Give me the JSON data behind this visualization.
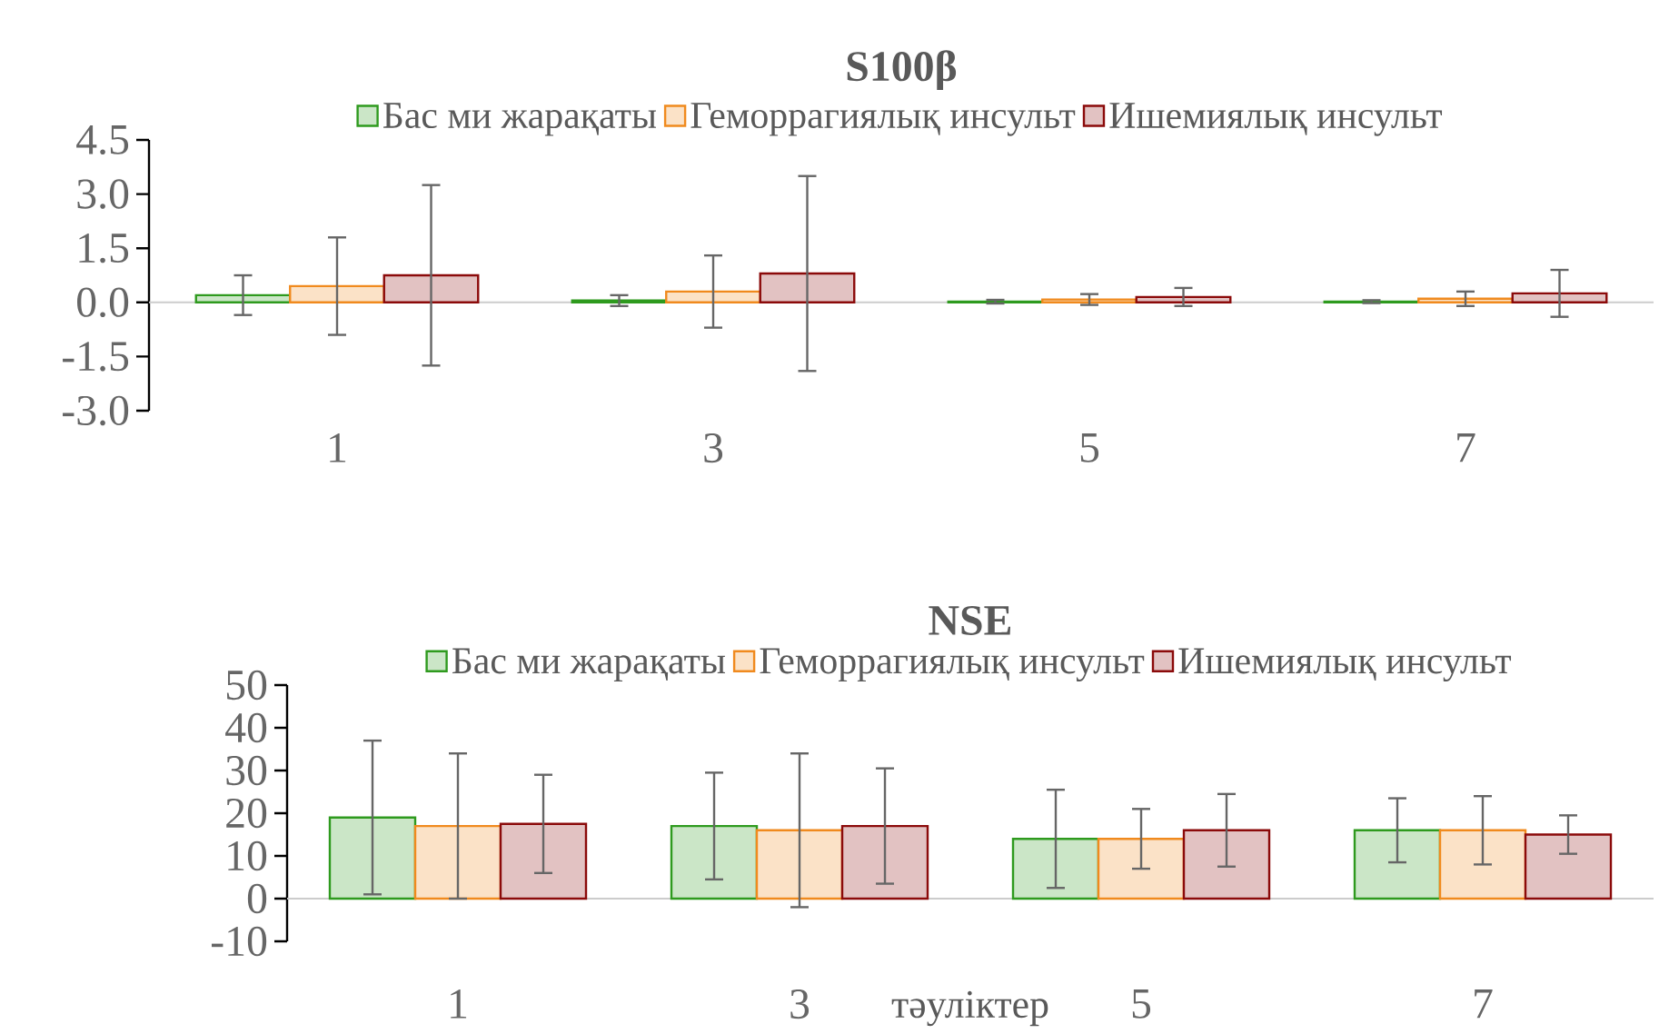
{
  "chart_data": [
    {
      "type": "bar",
      "title": "S100β",
      "legend": "top",
      "categories": [
        "1",
        "3",
        "5",
        "7"
      ],
      "series": [
        {
          "name": "Бас ми жарақаты",
          "color": "#2e9a1e",
          "values": [
            0.2,
            0.05,
            0.02,
            0.02
          ],
          "errors": [
            0.55,
            0.15,
            0.05,
            0.04
          ]
        },
        {
          "name": "Геморрагиялық инсульт",
          "color": "#f08a1e",
          "values": [
            0.45,
            0.3,
            0.08,
            0.1
          ],
          "errors": [
            1.35,
            1.0,
            0.15,
            0.2
          ]
        },
        {
          "name": "Ишемиялық инсульт",
          "color": "#8b0a0a",
          "values": [
            0.75,
            0.8,
            0.15,
            0.25
          ],
          "errors": [
            2.5,
            2.7,
            0.25,
            0.65
          ]
        }
      ],
      "ylim": [
        -3,
        4.5
      ],
      "yticks": [
        {
          "value": -3,
          "label": "-3.0"
        },
        {
          "value": -1.5,
          "label": "-1.5"
        },
        {
          "value": 0,
          "label": "0.0"
        },
        {
          "value": 1.5,
          "label": "1.5"
        },
        {
          "value": 3,
          "label": "3.0"
        },
        {
          "value": 4.5,
          "label": "4.5"
        }
      ]
    },
    {
      "type": "bar",
      "title": "NSE",
      "xlabel": "тәуліктер",
      "legend": "top",
      "categories": [
        "1",
        "3",
        "5",
        "7"
      ],
      "series": [
        {
          "name": "Бас ми жарақаты",
          "color": "#2e9a1e",
          "values": [
            19,
            17,
            14,
            16
          ],
          "errors": [
            18,
            12.5,
            11.5,
            7.5
          ]
        },
        {
          "name": "Геморрагиялық инсульт",
          "color": "#f08a1e",
          "values": [
            17,
            16,
            14,
            16
          ],
          "errors": [
            17,
            18,
            7,
            8
          ]
        },
        {
          "name": "Ишемиялық инсульт",
          "color": "#8b0a0a",
          "values": [
            17.5,
            17,
            16,
            15
          ],
          "errors": [
            11.5,
            13.5,
            8.5,
            4.5
          ]
        }
      ],
      "ylim": [
        -10,
        50
      ],
      "yticks": [
        -10,
        0,
        10,
        20,
        30,
        40,
        50
      ]
    }
  ]
}
